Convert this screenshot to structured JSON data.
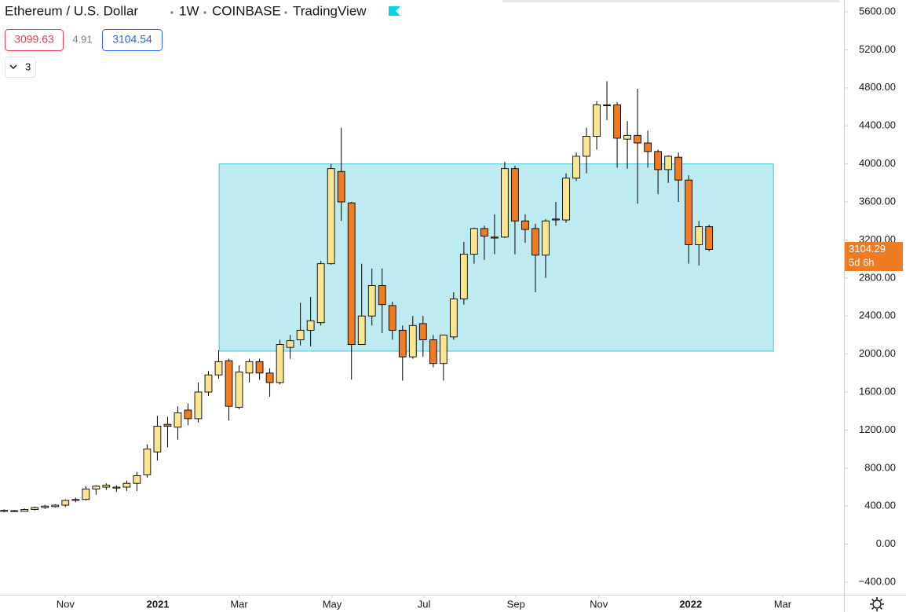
{
  "chart_data": {
    "type": "candlestick",
    "header": {
      "symbol": "Ethereum / U.S. Dollar",
      "interval": "1W",
      "exchange": "COINBASE",
      "source": "TradingView"
    },
    "quote": {
      "bid": 3099.63,
      "spread": 4.91,
      "ask": 3104.54
    },
    "indicators_count": "3",
    "last_price": 3104.29,
    "countdown": "5d 6h",
    "up_color": "#fbe58f",
    "down_color": "#ef7b22",
    "ohlc": {
      "open": [
        345,
        352,
        345,
        365,
        385,
        395,
        410,
        460,
        470,
        580,
        600,
        590,
        600,
        640,
        730,
        970,
        1260,
        1230,
        1410,
        1320,
        1600,
        1780,
        1930,
        1440,
        1800,
        1920,
        1800,
        1700,
        2070,
        2150,
        2250,
        2330,
        2950,
        3920,
        3590,
        2100,
        2400,
        2720,
        2510,
        2250,
        1970,
        2320,
        2150,
        1900,
        2180,
        2580,
        3050,
        3320,
        3230,
        3230,
        3950,
        3400,
        3320,
        3040,
        3420,
        3410,
        3850,
        4080,
        4290,
        4620,
        4620,
        4260,
        4300,
        4220,
        4130,
        3940,
        4070,
        3830,
        3150,
        3340
      ],
      "high": [
        365,
        360,
        375,
        395,
        415,
        420,
        470,
        490,
        610,
        620,
        640,
        620,
        670,
        760,
        1050,
        1350,
        1340,
        1450,
        1480,
        1700,
        1820,
        2040,
        1950,
        1880,
        1950,
        1950,
        1850,
        2150,
        2200,
        2540,
        2600,
        2980,
        4000,
        4380,
        3600,
        2950,
        2900,
        2900,
        2550,
        2300,
        2400,
        2400,
        2200,
        2200,
        2650,
        3180,
        3330,
        3350,
        3470,
        4020,
        3980,
        3470,
        3370,
        3420,
        3600,
        3900,
        4120,
        4380,
        4660,
        4870,
        4650,
        4450,
        4790,
        4350,
        4150,
        4090,
        4120,
        3880,
        3400,
        3360
      ],
      "low": [
        335,
        338,
        340,
        355,
        370,
        385,
        390,
        440,
        460,
        520,
        570,
        550,
        560,
        560,
        700,
        880,
        1020,
        1100,
        1250,
        1280,
        1560,
        1740,
        1300,
        1420,
        1700,
        1730,
        1550,
        1680,
        1950,
        2090,
        2080,
        2300,
        2940,
        3400,
        1730,
        2100,
        2300,
        2220,
        2150,
        1720,
        1950,
        1970,
        1860,
        1720,
        2150,
        2520,
        2950,
        2990,
        3050,
        3220,
        3050,
        3170,
        2650,
        2800,
        3350,
        3380,
        3820,
        3900,
        4150,
        4460,
        3960,
        3950,
        3580,
        3960,
        3680,
        3800,
        3600,
        2950,
        2930,
        3080
      ],
      "close": [
        355,
        345,
        365,
        385,
        400,
        410,
        460,
        470,
        580,
        610,
        620,
        600,
        640,
        720,
        1000,
        1240,
        1240,
        1380,
        1320,
        1600,
        1780,
        1920,
        1450,
        1810,
        1920,
        1800,
        1700,
        2100,
        2140,
        2250,
        2350,
        2950,
        3950,
        3600,
        2100,
        2400,
        2720,
        2520,
        2250,
        1970,
        2300,
        2150,
        1900,
        2200,
        2580,
        3050,
        3320,
        3240,
        3220,
        3950,
        3400,
        3310,
        3040,
        3400,
        3410,
        3850,
        4080,
        4290,
        4620,
        4620,
        4270,
        4300,
        4220,
        4130,
        3940,
        4080,
        3830,
        3150,
        3340,
        3100
      ]
    },
    "box": {
      "x": [
        21.05,
        75.3
      ],
      "y": [
        2030,
        4000
      ],
      "color": "#bdebf1",
      "border": "#4fc3d0"
    },
    "xlim": [
      -0.4,
      82.2
    ],
    "xticks": [
      {
        "value": 6.0,
        "label": "Nov"
      },
      {
        "value": 15.05,
        "label": "2021"
      },
      {
        "value": 23.0,
        "label": "Mar"
      },
      {
        "value": 32.1,
        "label": "May"
      },
      {
        "value": 41.1,
        "label": "Jul"
      },
      {
        "value": 50.1,
        "label": "Sep"
      },
      {
        "value": 58.2,
        "label": "Nov"
      },
      {
        "value": 67.2,
        "label": "2022"
      },
      {
        "value": 76.2,
        "label": "Mar"
      }
    ],
    "ylim": [
      -532,
      5724
    ],
    "yticks": [
      {
        "value": 5600,
        "label": "5600.00"
      },
      {
        "value": 5200,
        "label": "5200.00"
      },
      {
        "value": 4800,
        "label": "4800.00"
      },
      {
        "value": 4400,
        "label": "4400.00"
      },
      {
        "value": 4000,
        "label": "4000.00"
      },
      {
        "value": 3600,
        "label": "3600.00"
      },
      {
        "value": 3200,
        "label": "3200.00"
      },
      {
        "value": 2800,
        "label": "2800.00"
      },
      {
        "value": 2400,
        "label": "2400.00"
      },
      {
        "value": 2000,
        "label": "2000.00"
      },
      {
        "value": 1600,
        "label": "1600.00"
      },
      {
        "value": 1200,
        "label": "1200.00"
      },
      {
        "value": 800,
        "label": "800.00"
      },
      {
        "value": 400,
        "label": "400.00"
      },
      {
        "value": 0,
        "label": "0.00"
      },
      {
        "value": -400,
        "label": "−400.00"
      }
    ],
    "grid": false
  }
}
